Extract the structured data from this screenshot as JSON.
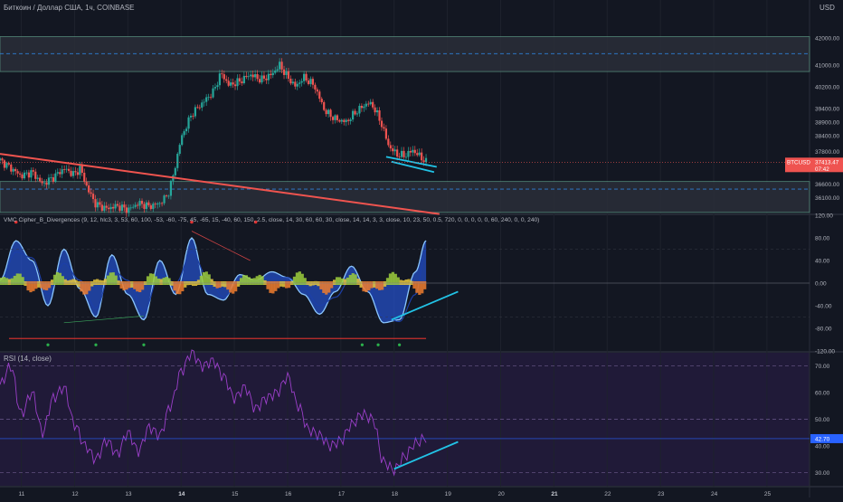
{
  "header": {
    "symbol_title": "Биткоин / Доллар США, 1ч, COINBASE",
    "currency": "USD"
  },
  "price_pane": {
    "y_ticks": [
      "42000.00",
      "41000.00",
      "40200.00",
      "39400.00",
      "38900.00",
      "38400.00",
      "37800.00",
      "36600.00",
      "36100.00"
    ],
    "price_badge": {
      "label": "BTCUSD",
      "value": "37413.47",
      "countdown": "07:42"
    }
  },
  "vmc_pane": {
    "label": "VMC Cipher_B_Divergences (9, 12, hlc3, 3, 53, 60, 100, -53, -60, -75, 45, -65, 15, -40, 60, 150, 2.5, close, 14, 30, 60, 60, 30, close, 14, 14, 3, 3, close, 10, 23, 50, 0.5, 720, 0, 0, 0, 0, 0, 60, 240, 0, 0, 240)",
    "y_ticks": [
      "120.00",
      "80.00",
      "40.00",
      "0.00",
      "-40.00",
      "-80.00",
      "-120.00"
    ]
  },
  "rsi_pane": {
    "label": "RSI (14, close)",
    "y_ticks": [
      "70.00",
      "60.00",
      "50.00",
      "40.00",
      "30.00"
    ],
    "current_value": "42.70"
  },
  "x_axis": {
    "ticks": [
      "11",
      "12",
      "13",
      "14",
      "15",
      "16",
      "17",
      "18",
      "19",
      "20",
      "21",
      "22",
      "23",
      "24",
      "25"
    ]
  },
  "colors": {
    "background": "#131722",
    "up": "#26a69a",
    "down": "#ef5350",
    "trendline": "#f0544f",
    "divergence": "#22c3e6",
    "zone_fill": "#2a2e39",
    "zone_border": "#5d9a86",
    "rsi_line": "#9b3fc9",
    "rsi_band": "#2b1d4a",
    "wave_blue": "#2962ff"
  },
  "chart_data": [
    {
      "type": "candlestick",
      "title": "Биткоин / Доллар США, 1ч, COINBASE",
      "x_unit": "day of month",
      "x_range": [
        10.6,
        25.8
      ],
      "ylim": [
        35520,
        42800
      ],
      "closes": [
        [
          10.6,
          37480
        ],
        [
          10.8,
          37200
        ],
        [
          11.0,
          36900
        ],
        [
          11.2,
          37050
        ],
        [
          11.4,
          36600
        ],
        [
          11.6,
          36850
        ],
        [
          11.8,
          37180
        ],
        [
          12.0,
          36950
        ],
        [
          12.1,
          37200
        ],
        [
          12.25,
          36400
        ],
        [
          12.4,
          35850
        ],
        [
          12.6,
          35700
        ],
        [
          12.8,
          35800
        ],
        [
          13.0,
          35650
        ],
        [
          13.2,
          35900
        ],
        [
          13.4,
          35780
        ],
        [
          13.6,
          35900
        ],
        [
          13.75,
          36200
        ],
        [
          13.85,
          36900
        ],
        [
          14.0,
          38300
        ],
        [
          14.2,
          39200
        ],
        [
          14.4,
          39600
        ],
        [
          14.6,
          40000
        ],
        [
          14.75,
          40700
        ],
        [
          14.9,
          40250
        ],
        [
          15.1,
          40400
        ],
        [
          15.3,
          40650
        ],
        [
          15.5,
          40450
        ],
        [
          15.7,
          40650
        ],
        [
          15.85,
          41000
        ],
        [
          16.0,
          40550
        ],
        [
          16.15,
          40200
        ],
        [
          16.3,
          40550
        ],
        [
          16.5,
          40250
        ],
        [
          16.7,
          39300
        ],
        [
          16.9,
          39000
        ],
        [
          17.1,
          38900
        ],
        [
          17.3,
          39300
        ],
        [
          17.5,
          39600
        ],
        [
          17.6,
          39500
        ],
        [
          17.75,
          38900
        ],
        [
          17.9,
          38000
        ],
        [
          18.05,
          37700
        ],
        [
          18.2,
          37650
        ],
        [
          18.35,
          37850
        ],
        [
          18.5,
          37600
        ],
        [
          18.6,
          37413
        ]
      ],
      "zones": [
        [
          40760,
          42050
        ],
        [
          35560,
          36700
        ]
      ],
      "dashed_levels": [
        41420,
        36420
      ],
      "trendline": [
        [
          10.6,
          37720
        ],
        [
          18.85,
          35500
        ]
      ],
      "divergence_line": [
        [
          17.85,
          37610
        ],
        [
          18.8,
          37240
        ]
      ],
      "last_price": 37413.47
    },
    {
      "type": "line",
      "title": "VMC Cipher_B_Divergences",
      "ylim": [
        -120,
        120
      ],
      "series": [
        {
          "name": "wave1",
          "x": [
            10.6,
            10.9,
            11.2,
            11.5,
            11.8,
            12.1,
            12.4,
            12.7,
            13.0,
            13.3,
            13.6,
            13.9,
            14.2,
            14.5,
            14.8,
            15.1,
            15.4,
            15.7,
            16.0,
            16.3,
            16.6,
            16.9,
            17.2,
            17.5,
            17.8,
            18.1,
            18.4,
            18.6
          ],
          "values": [
            5,
            75,
            40,
            -40,
            60,
            -10,
            -60,
            50,
            -20,
            -65,
            40,
            -20,
            80,
            -20,
            -30,
            15,
            5,
            20,
            10,
            -20,
            -55,
            -15,
            30,
            -15,
            -70,
            -65,
            20,
            75
          ]
        },
        {
          "name": "wave2",
          "x": [
            10.6,
            10.9,
            11.2,
            11.5,
            11.8,
            12.1,
            12.4,
            12.7,
            13.0,
            13.3,
            13.6,
            13.9,
            14.2,
            14.5,
            14.8,
            15.1,
            15.4,
            15.7,
            16.0,
            16.3,
            16.6,
            16.9,
            17.2,
            17.5,
            17.8,
            18.1,
            18.4,
            18.6
          ],
          "values": [
            0,
            55,
            45,
            -20,
            35,
            5,
            -45,
            25,
            5,
            -50,
            15,
            0,
            55,
            10,
            -25,
            5,
            5,
            10,
            10,
            -10,
            -40,
            -25,
            10,
            -5,
            -60,
            -68,
            -20,
            60
          ]
        }
      ],
      "levels": [
        0,
        60,
        -60
      ]
    },
    {
      "type": "line",
      "title": "RSI (14, close)",
      "ylim": [
        25,
        75
      ],
      "series": [
        {
          "name": "RSI",
          "x": [
            10.6,
            10.8,
            11.0,
            11.2,
            11.4,
            11.6,
            11.8,
            12.0,
            12.2,
            12.4,
            12.6,
            12.8,
            13.0,
            13.2,
            13.4,
            13.6,
            13.8,
            14.0,
            14.2,
            14.4,
            14.6,
            14.8,
            15.0,
            15.2,
            15.4,
            15.6,
            15.8,
            16.0,
            16.2,
            16.4,
            16.6,
            16.8,
            17.0,
            17.2,
            17.4,
            17.6,
            17.8,
            18.0,
            18.2,
            18.4,
            18.6
          ],
          "values": [
            63,
            70,
            52,
            60,
            45,
            58,
            62,
            48,
            40,
            35,
            42,
            37,
            45,
            38,
            47,
            44,
            55,
            68,
            75,
            70,
            72,
            66,
            58,
            62,
            54,
            58,
            60,
            66,
            55,
            46,
            44,
            40,
            42,
            48,
            52,
            50,
            34,
            31,
            36,
            41,
            43
          ]
        }
      ],
      "levels": [
        70,
        50,
        30
      ],
      "divergence_line": [
        [
          18.0,
          31.3
        ],
        [
          19.2,
          41.5
        ]
      ],
      "current_value": 42.7
    }
  ]
}
